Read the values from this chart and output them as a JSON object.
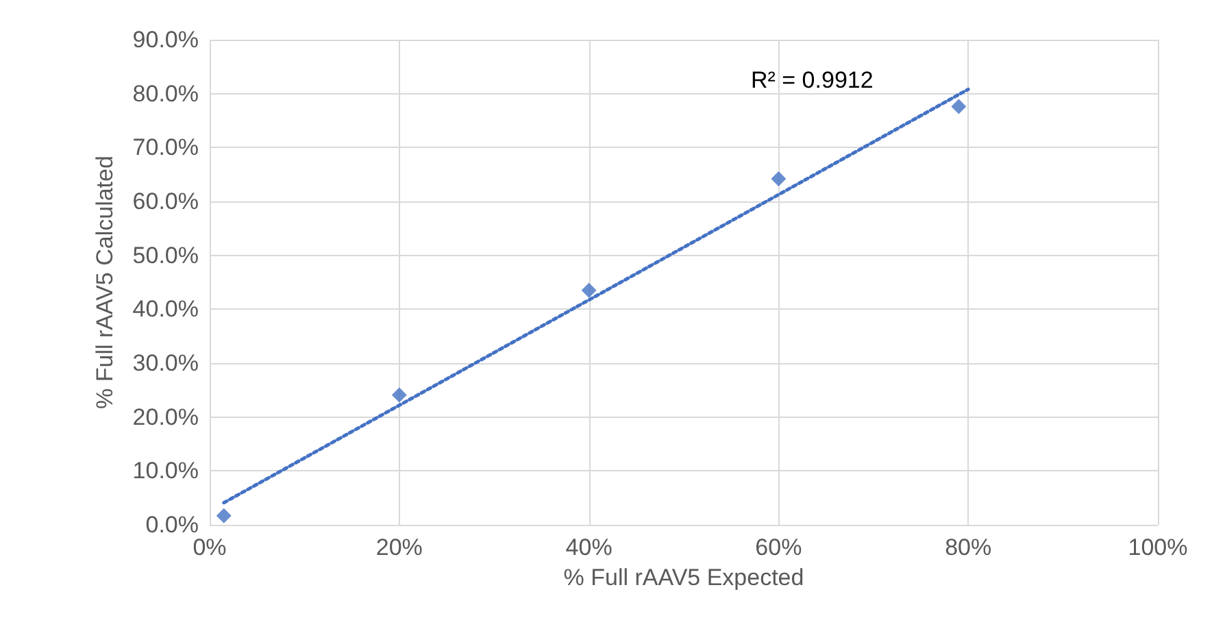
{
  "chart_data": {
    "type": "scatter",
    "xlabel": "% Full rAAV5 Expected",
    "ylabel": "% Full rAAV5 Calculated",
    "xlim": [
      0,
      100
    ],
    "xticks": [
      {
        "value": 0,
        "label": "0%"
      },
      {
        "value": 20,
        "label": "20%"
      },
      {
        "value": 40,
        "label": "40%"
      },
      {
        "value": 60,
        "label": "60%"
      },
      {
        "value": 80,
        "label": "80%"
      },
      {
        "value": 100,
        "label": "100%"
      }
    ],
    "ylim": [
      0,
      90
    ],
    "yticks": [
      {
        "value": 0,
        "label": "0.0%"
      },
      {
        "value": 10,
        "label": "10.0%"
      },
      {
        "value": 20,
        "label": "20.0%"
      },
      {
        "value": 30,
        "label": "30.0%"
      },
      {
        "value": 40,
        "label": "40.0%"
      },
      {
        "value": 50,
        "label": "50.0%"
      },
      {
        "value": 60,
        "label": "60.0%"
      },
      {
        "value": 70,
        "label": "70.0%"
      },
      {
        "value": 80,
        "label": "80.0%"
      },
      {
        "value": 90,
        "label": "90.0%"
      }
    ],
    "grid": true,
    "marker": "diamond",
    "series": [
      {
        "color": "#4472c4",
        "x": [
          1.5,
          20,
          40,
          60,
          79
        ],
        "values": [
          1.7,
          24.1,
          43.5,
          64.2,
          77.6
        ]
      },
      {
        "type": "line",
        "color": "#4472c4",
        "x": [
          1.5,
          80
        ],
        "values": [
          4.1,
          80.8
        ],
        "line_style": "dotted",
        "marker": "none"
      }
    ],
    "annotations": [
      "R² = 0.9912"
    ]
  }
}
